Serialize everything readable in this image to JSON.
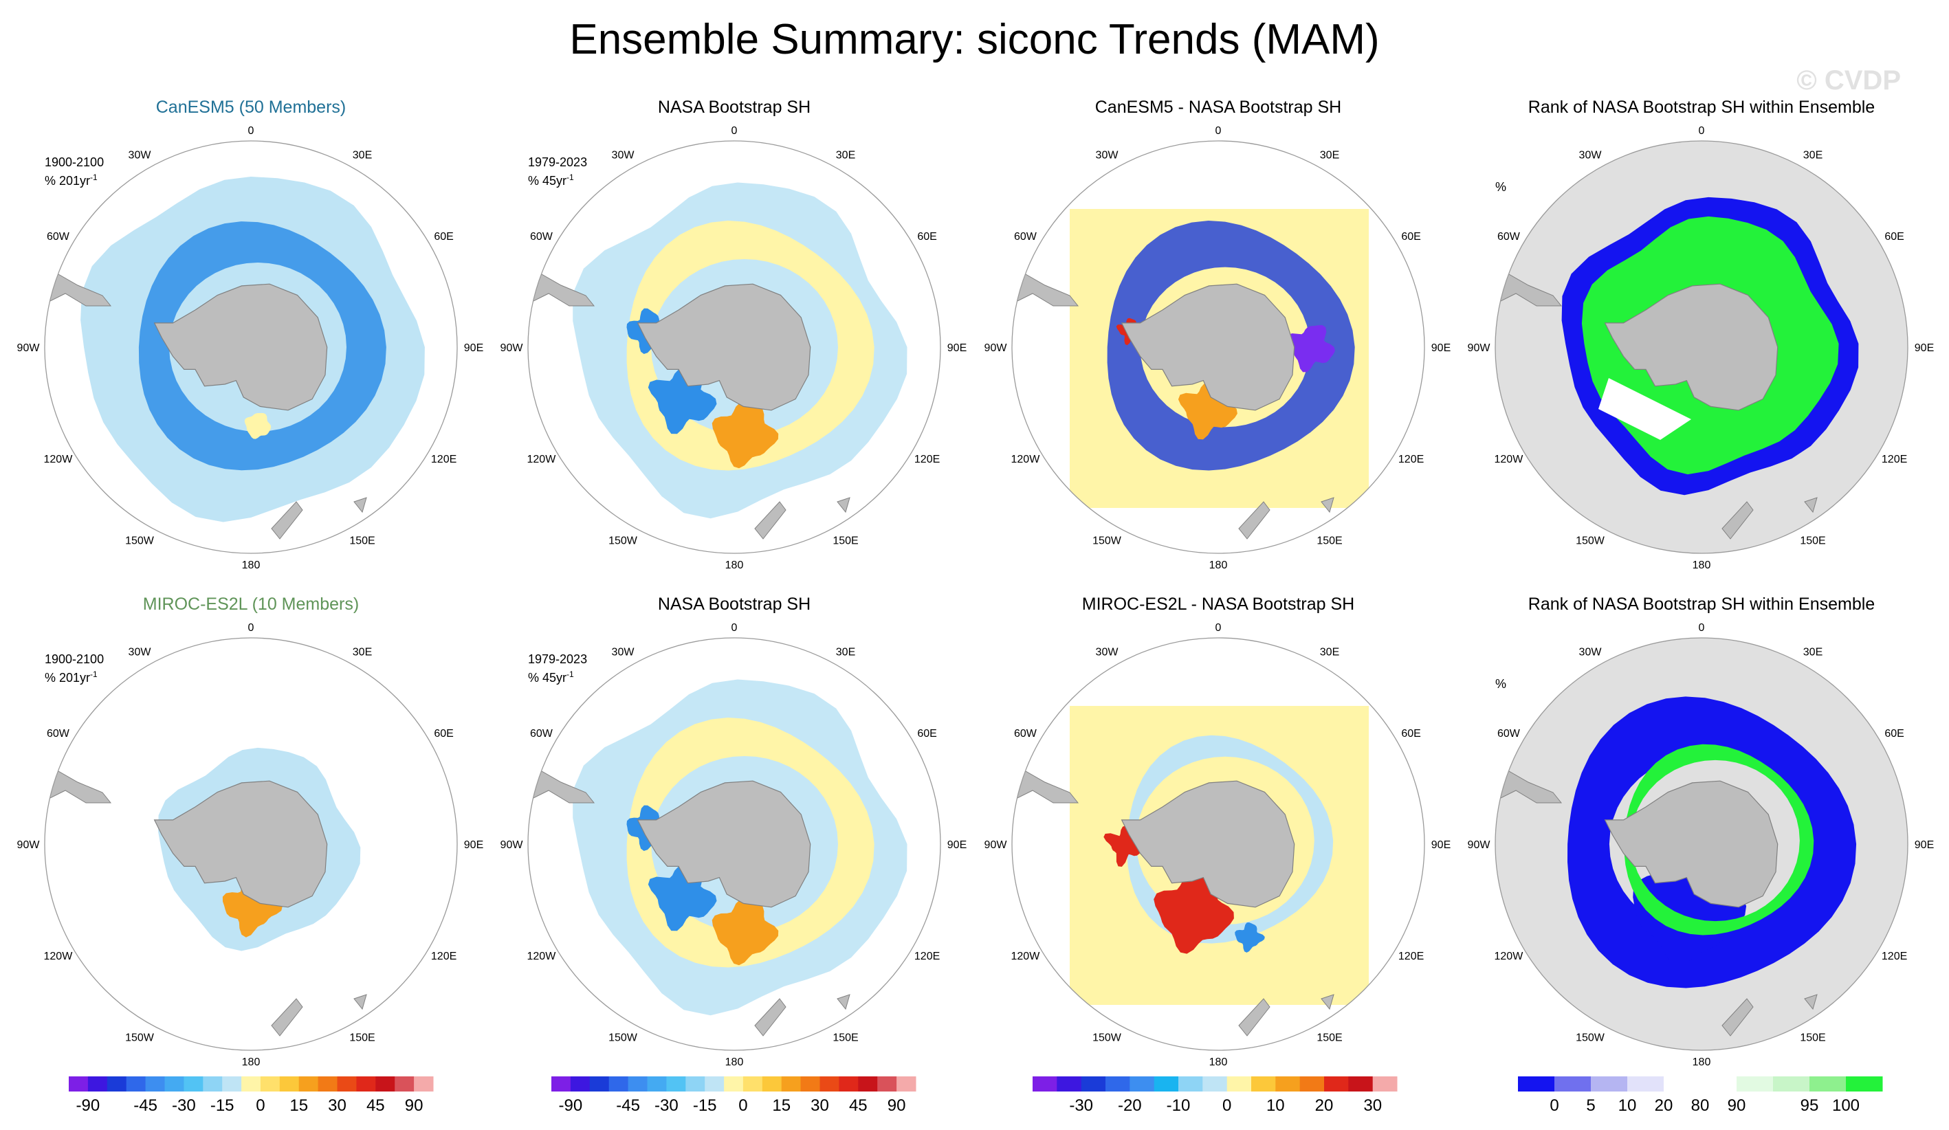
{
  "title": "Ensemble Summary: siconc Trends (MAM)",
  "watermark": "© CVDP",
  "longitude_labels": [
    "0",
    "30E",
    "60E",
    "90E",
    "120E",
    "150E",
    "180",
    "150W",
    "120W",
    "90W",
    "60W",
    "30W"
  ],
  "colors": {
    "land": "#bdbdbd",
    "outside": "#e0e0e0",
    "yellow": "#fff5a8",
    "light_blue": "#bfe4f5",
    "blue": "#2f8fe8",
    "dark_blue": "#1a3bd8",
    "purple": "#7a2df0",
    "orange": "#f6a01e",
    "red": "#e0281a",
    "green": "#23f23a",
    "rank_blue": "#1414f0",
    "model1_title": "#1f7096",
    "model2_title": "#5f9458"
  },
  "panels": [
    {
      "title": "CanESM5 (50 Members)",
      "period": "1900-2100",
      "units": "% 201yr",
      "units_sup": "-1",
      "type": "model1"
    },
    {
      "title": "NASA Bootstrap SH",
      "period": "1979-2023",
      "units": "% 45yr",
      "units_sup": "-1",
      "type": "obs"
    },
    {
      "title": "CanESM5 - NASA Bootstrap SH",
      "period": "",
      "units": "",
      "units_sup": "",
      "type": "diff1"
    },
    {
      "title": "Rank of NASA Bootstrap SH within Ensemble",
      "period": "",
      "units": "%",
      "units_sup": "",
      "type": "rank1"
    },
    {
      "title": "MIROC-ES2L (10 Members)",
      "period": "1900-2100",
      "units": "% 201yr",
      "units_sup": "-1",
      "type": "model2"
    },
    {
      "title": "NASA Bootstrap SH",
      "period": "1979-2023",
      "units": "% 45yr",
      "units_sup": "-1",
      "type": "obs"
    },
    {
      "title": "MIROC-ES2L - NASA Bootstrap SH",
      "period": "",
      "units": "",
      "units_sup": "",
      "type": "diff2"
    },
    {
      "title": "Rank of NASA Bootstrap SH within Ensemble",
      "period": "",
      "units": "%",
      "units_sup": "",
      "type": "rank2"
    }
  ],
  "colorbars": [
    {
      "name": "trend",
      "colors": [
        "#7d1fe6",
        "#3d17e0",
        "#1a3bd8",
        "#2f68ea",
        "#3d8ef0",
        "#44aaf2",
        "#52c3f4",
        "#8ed4f5",
        "#bfe4f5",
        "#fff5a8",
        "#ffe06b",
        "#fcc83a",
        "#f6a01e",
        "#f27a16",
        "#ea4a16",
        "#e0281a",
        "#c8141a",
        "#d9525a",
        "#f4aaaa"
      ],
      "labels": [
        "-90",
        "-45",
        "-30",
        "-15",
        "0",
        "15",
        "30",
        "45",
        "90"
      ]
    },
    {
      "name": "trend",
      "colors": [
        "#7d1fe6",
        "#3d17e0",
        "#1a3bd8",
        "#2f68ea",
        "#3d8ef0",
        "#44aaf2",
        "#52c3f4",
        "#8ed4f5",
        "#bfe4f5",
        "#fff5a8",
        "#ffe06b",
        "#fcc83a",
        "#f6a01e",
        "#f27a16",
        "#ea4a16",
        "#e0281a",
        "#c8141a",
        "#d9525a",
        "#f4aaaa"
      ],
      "labels": [
        "-90",
        "-45",
        "-30",
        "-15",
        "0",
        "15",
        "30",
        "45",
        "90"
      ]
    },
    {
      "name": "difference",
      "colors": [
        "#7d1fe6",
        "#3d17e0",
        "#1a3bd8",
        "#2f68ea",
        "#3d8ef0",
        "#19b4f0",
        "#8ed4f5",
        "#bfe4f5",
        "#fff5a8",
        "#fcc83a",
        "#f6a01e",
        "#f27a16",
        "#e0281a",
        "#c8141a",
        "#f4aaaa"
      ],
      "labels": [
        "-30",
        "-20",
        "-10",
        "0",
        "10",
        "20",
        "30"
      ]
    },
    {
      "name": "rank",
      "colors": [
        "#1414f0",
        "#7070ee",
        "#b5b5f2",
        "#e2e2fa",
        "#ffffff",
        "#ffffff",
        "#e2fae2",
        "#c8f5c8",
        "#8ef08e",
        "#23f23a"
      ],
      "labels": [
        "0",
        "5",
        "10",
        "20",
        "80",
        "90",
        "95",
        "100"
      ]
    }
  ]
}
